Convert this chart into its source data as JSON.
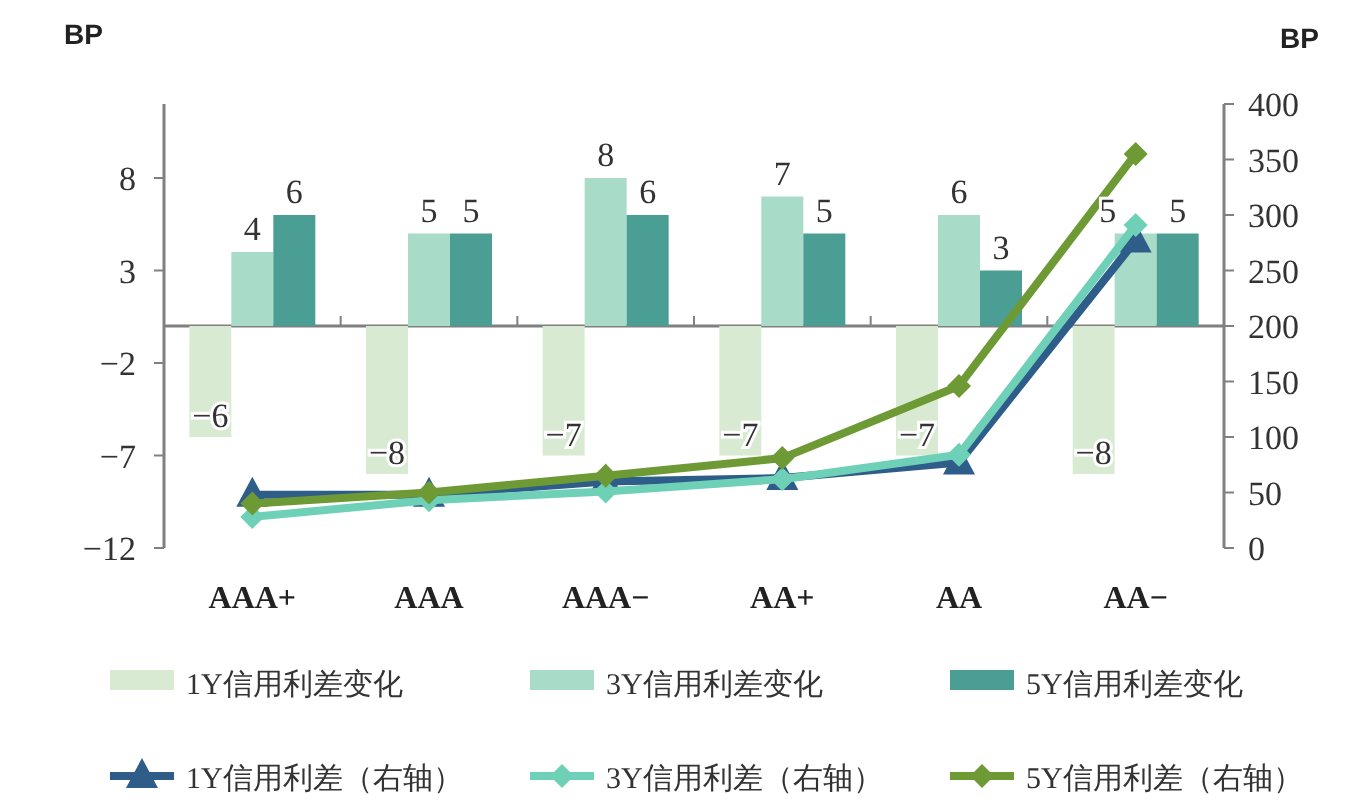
{
  "chart_data": {
    "type": "bar",
    "ylabel": "BP",
    "y2label": "BP",
    "categories": [
      "AAA+",
      "AAA",
      "AAA−",
      "AA+",
      "AA",
      "AA−"
    ],
    "ylim": [
      -12,
      12
    ],
    "yticks": [
      -12,
      -7,
      -2,
      3,
      8
    ],
    "y2lim": [
      0,
      400
    ],
    "y2ticks": [
      0,
      50,
      100,
      150,
      200,
      250,
      300,
      350,
      400
    ],
    "legend": "bottom",
    "series": [
      {
        "name": "1Y信用利差变化",
        "color": "#d9ead3",
        "values": [
          -6,
          -8,
          -7,
          -7,
          -7,
          -8
        ],
        "value_labels": [
          "−6",
          "−8",
          "−7",
          "−7",
          "−7",
          "−8"
        ]
      },
      {
        "name": "3Y信用利差变化",
        "color": "#a8dcc9",
        "values": [
          4,
          5,
          8,
          7,
          6,
          5
        ],
        "value_labels": [
          "4",
          "5",
          "8",
          "7",
          "6",
          "5"
        ]
      },
      {
        "name": "5Y信用利差变化",
        "color": "#4a9e94",
        "values": [
          6,
          5,
          6,
          5,
          3,
          5
        ],
        "value_labels": [
          "6",
          "5",
          "6",
          "5",
          "3",
          "5"
        ]
      },
      {
        "name": "1Y信用利差（右轴）",
        "type": "line",
        "axis": "y2",
        "marker": "triangle",
        "color": "#2e5d8a",
        "values": [
          48,
          48,
          60,
          63,
          77,
          277
        ]
      },
      {
        "name": "3Y信用利差（右轴）",
        "type": "line",
        "axis": "y2",
        "marker": "diamond",
        "color": "#6fd0b8",
        "values": [
          28,
          43,
          51,
          62,
          84,
          291
        ]
      },
      {
        "name": "5Y信用利差（右轴）",
        "type": "line",
        "axis": "y2",
        "marker": "diamond",
        "color": "#6e9a35",
        "values": [
          40,
          50,
          65,
          81,
          146,
          355
        ]
      }
    ]
  }
}
